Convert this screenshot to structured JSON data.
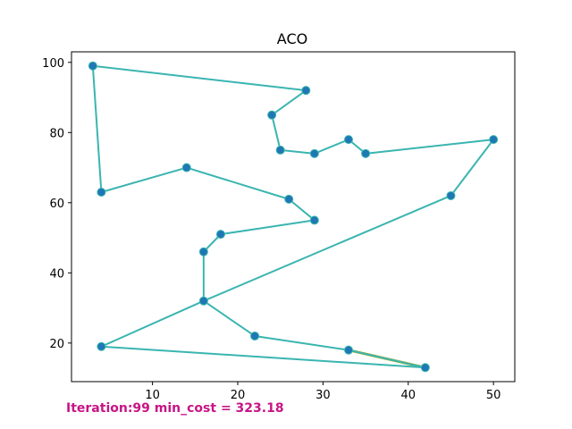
{
  "chart_data": {
    "type": "line",
    "title": "ACO",
    "xlabel": "",
    "ylabel": "",
    "xlim": [
      0.5,
      52.5
    ],
    "ylim": [
      9,
      103
    ],
    "grid": false,
    "x_ticks": [
      10,
      20,
      30,
      40,
      50
    ],
    "y_ticks": [
      20,
      40,
      60,
      80,
      100
    ],
    "cities": [
      {
        "x": 3,
        "y": 99
      },
      {
        "x": 28,
        "y": 92
      },
      {
        "x": 24,
        "y": 85
      },
      {
        "x": 25,
        "y": 75
      },
      {
        "x": 29,
        "y": 74
      },
      {
        "x": 33,
        "y": 78
      },
      {
        "x": 35,
        "y": 74
      },
      {
        "x": 50,
        "y": 78
      },
      {
        "x": 45,
        "y": 62
      },
      {
        "x": 16,
        "y": 32
      },
      {
        "x": 4,
        "y": 19
      },
      {
        "x": 42,
        "y": 13
      },
      {
        "x": 33,
        "y": 18
      },
      {
        "x": 22,
        "y": 22
      },
      {
        "x": 16,
        "y": 46
      },
      {
        "x": 18,
        "y": 51
      },
      {
        "x": 29,
        "y": 55
      },
      {
        "x": 26,
        "y": 61
      },
      {
        "x": 14,
        "y": 70
      },
      {
        "x": 4,
        "y": 63
      }
    ],
    "tour": [
      0,
      1,
      2,
      3,
      4,
      5,
      6,
      7,
      8,
      9,
      10,
      11,
      12,
      13,
      9,
      14,
      15,
      16,
      17,
      18,
      19,
      0
    ],
    "colors": {
      "route": "#3ab5b0",
      "route_highlight": "#9aaa2a",
      "point": "#1f77b4",
      "status_text": "#c71585"
    }
  },
  "status": {
    "text": "Iteration:99 min_cost = 323.18"
  }
}
